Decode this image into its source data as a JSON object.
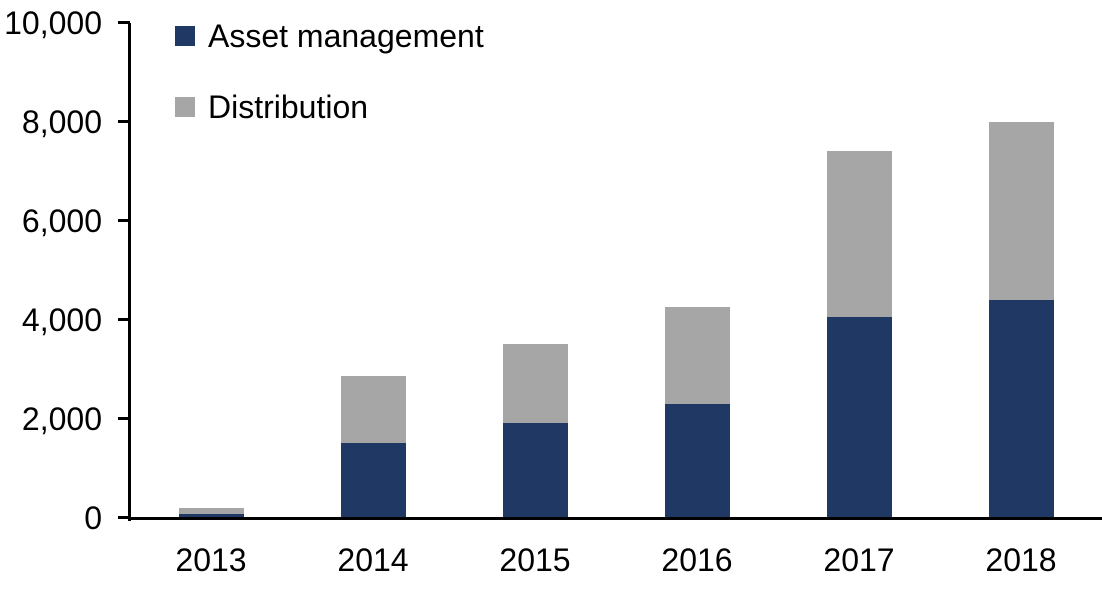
{
  "chart_data": {
    "type": "bar",
    "stacked": true,
    "title": "",
    "xlabel": "",
    "ylabel": "",
    "categories": [
      "2013",
      "2014",
      "2015",
      "2016",
      "2017",
      "2018"
    ],
    "series": [
      {
        "name": "Asset management",
        "color": "#1F3864",
        "values": [
          80,
          1500,
          1900,
          2300,
          4050,
          4400
        ]
      },
      {
        "name": "Distribution",
        "color": "#A6A6A6",
        "values": [
          110,
          1350,
          1600,
          1950,
          3350,
          3600
        ]
      }
    ],
    "ylim": [
      0,
      10000
    ],
    "yticks": [
      0,
      2000,
      4000,
      6000,
      8000,
      10000
    ],
    "ytick_labels": [
      "0",
      "2,000",
      "4,000",
      "6,000",
      "8,000",
      "10,000"
    ],
    "grid": false,
    "legend_position": "top-left-inside",
    "axis_color": "#000000",
    "background_color": "#FFFFFF"
  }
}
